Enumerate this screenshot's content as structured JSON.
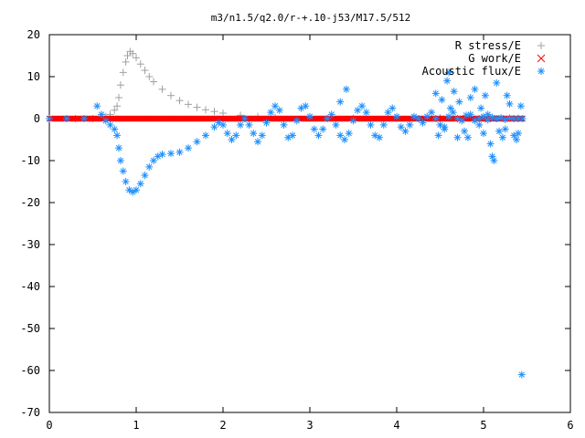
{
  "chart_data": {
    "type": "scatter",
    "title": "m3/n1.5/q2.0/r-+.10-j53/M17.5/512",
    "xlabel": "",
    "ylabel": "",
    "xlim": [
      0,
      6
    ],
    "ylim": [
      -70,
      20
    ],
    "xticks": [
      0,
      1,
      2,
      3,
      4,
      5,
      6
    ],
    "yticks": [
      20,
      10,
      0,
      -10,
      -20,
      -30,
      -40,
      -50,
      -60,
      -70
    ],
    "grid": false,
    "legend_position": "top-right",
    "series": [
      {
        "name": "R stress/E",
        "marker": "+",
        "color": "#a0a0a0",
        "points": [
          [
            0.0,
            0.0
          ],
          [
            0.3,
            0.0
          ],
          [
            0.5,
            0.0
          ],
          [
            0.6,
            0.2
          ],
          [
            0.65,
            0.5
          ],
          [
            0.7,
            1.0
          ],
          [
            0.75,
            2.0
          ],
          [
            0.78,
            3.0
          ],
          [
            0.8,
            5.0
          ],
          [
            0.82,
            8.0
          ],
          [
            0.85,
            11.0
          ],
          [
            0.88,
            13.5
          ],
          [
            0.9,
            15.0
          ],
          [
            0.93,
            16.0
          ],
          [
            0.96,
            15.5
          ],
          [
            1.0,
            14.5
          ],
          [
            1.05,
            13.0
          ],
          [
            1.1,
            11.5
          ],
          [
            1.15,
            10.0
          ],
          [
            1.2,
            8.8
          ],
          [
            1.3,
            7.0
          ],
          [
            1.4,
            5.5
          ],
          [
            1.5,
            4.3
          ],
          [
            1.6,
            3.4
          ],
          [
            1.7,
            2.7
          ],
          [
            1.8,
            2.1
          ],
          [
            1.9,
            1.7
          ],
          [
            2.0,
            1.3
          ],
          [
            2.2,
            0.8
          ],
          [
            2.4,
            0.5
          ],
          [
            2.6,
            0.3
          ],
          [
            3.0,
            0.2
          ],
          [
            3.5,
            0.1
          ],
          [
            4.0,
            0.1
          ],
          [
            4.5,
            0.2
          ],
          [
            5.0,
            0.2
          ],
          [
            5.4,
            0.2
          ]
        ]
      },
      {
        "name": "G work/E",
        "marker": "x",
        "color": "#ff0000",
        "points": [
          [
            0.0,
            0.0
          ],
          [
            0.5,
            0.0
          ],
          [
            1.0,
            0.0
          ],
          [
            1.5,
            0.0
          ],
          [
            2.0,
            0.0
          ],
          [
            2.5,
            0.0
          ],
          [
            3.0,
            0.0
          ],
          [
            3.5,
            0.0
          ],
          [
            4.0,
            0.0
          ],
          [
            4.5,
            0.0
          ],
          [
            5.0,
            0.0
          ],
          [
            5.45,
            0.0
          ]
        ]
      },
      {
        "name": "Acoustic flux/E",
        "marker": "*",
        "color": "#1e90ff",
        "points": [
          [
            0.0,
            0.0
          ],
          [
            0.2,
            0.0
          ],
          [
            0.4,
            0.0
          ],
          [
            0.55,
            3.0
          ],
          [
            0.6,
            1.0
          ],
          [
            0.65,
            -0.5
          ],
          [
            0.7,
            -1.5
          ],
          [
            0.75,
            -2.5
          ],
          [
            0.78,
            -4.0
          ],
          [
            0.8,
            -7.0
          ],
          [
            0.82,
            -10.0
          ],
          [
            0.85,
            -12.5
          ],
          [
            0.88,
            -15.0
          ],
          [
            0.92,
            -17.0
          ],
          [
            0.96,
            -17.5
          ],
          [
            1.0,
            -17.0
          ],
          [
            1.05,
            -15.5
          ],
          [
            1.1,
            -13.5
          ],
          [
            1.15,
            -11.5
          ],
          [
            1.2,
            -10.0
          ],
          [
            1.25,
            -9.0
          ],
          [
            1.3,
            -8.5
          ],
          [
            1.4,
            -8.3
          ],
          [
            1.5,
            -8.0
          ],
          [
            1.6,
            -7.0
          ],
          [
            1.7,
            -5.5
          ],
          [
            1.8,
            -4.0
          ],
          [
            1.9,
            -2.0
          ],
          [
            1.95,
            -1.0
          ],
          [
            2.0,
            -1.5
          ],
          [
            2.05,
            -3.5
          ],
          [
            2.1,
            -5.0
          ],
          [
            2.15,
            -4.0
          ],
          [
            2.2,
            -1.5
          ],
          [
            2.25,
            0.0
          ],
          [
            2.3,
            -1.5
          ],
          [
            2.35,
            -3.5
          ],
          [
            2.4,
            -5.5
          ],
          [
            2.45,
            -4.0
          ],
          [
            2.5,
            -1.0
          ],
          [
            2.55,
            1.5
          ],
          [
            2.6,
            3.0
          ],
          [
            2.65,
            2.0
          ],
          [
            2.7,
            -1.5
          ],
          [
            2.75,
            -4.5
          ],
          [
            2.8,
            -4.0
          ],
          [
            2.85,
            -0.5
          ],
          [
            2.9,
            2.5
          ],
          [
            2.95,
            3.0
          ],
          [
            3.0,
            0.5
          ],
          [
            3.05,
            -2.5
          ],
          [
            3.1,
            -4.0
          ],
          [
            3.15,
            -2.5
          ],
          [
            3.2,
            0.0
          ],
          [
            3.25,
            1.0
          ],
          [
            3.3,
            -1.5
          ],
          [
            3.35,
            -4.0
          ],
          [
            3.4,
            -5.0
          ],
          [
            3.45,
            -3.5
          ],
          [
            3.5,
            -0.5
          ],
          [
            3.55,
            2.0
          ],
          [
            3.6,
            3.0
          ],
          [
            3.65,
            1.5
          ],
          [
            3.7,
            -1.5
          ],
          [
            3.75,
            -4.0
          ],
          [
            3.8,
            -4.5
          ],
          [
            3.85,
            -1.5
          ],
          [
            3.9,
            1.5
          ],
          [
            3.95,
            2.5
          ],
          [
            4.0,
            0.5
          ],
          [
            4.05,
            -2.0
          ],
          [
            4.1,
            -3.0
          ],
          [
            4.15,
            -1.5
          ],
          [
            4.2,
            0.5
          ],
          [
            4.25,
            0.0
          ],
          [
            4.3,
            -1.0
          ],
          [
            4.35,
            0.5
          ],
          [
            4.4,
            1.5
          ],
          [
            4.45,
            0.0
          ],
          [
            4.5,
            -1.5
          ],
          [
            4.55,
            -2.0
          ],
          [
            4.6,
            0.5
          ],
          [
            4.65,
            1.5
          ],
          [
            4.7,
            0.0
          ],
          [
            4.75,
            -0.5
          ],
          [
            4.8,
            0.8
          ],
          [
            4.85,
            1.0
          ],
          [
            4.9,
            -0.5
          ],
          [
            4.95,
            0.0
          ],
          [
            5.0,
            0.5
          ],
          [
            5.05,
            -0.3
          ],
          [
            5.1,
            0.3
          ],
          [
            5.15,
            0.0
          ],
          [
            5.2,
            0.2
          ],
          [
            5.25,
            -0.2
          ],
          [
            5.3,
            0.1
          ],
          [
            5.35,
            0.0
          ],
          [
            5.4,
            0.0
          ],
          [
            5.45,
            0.0
          ],
          [
            3.42,
            7.0
          ],
          [
            3.35,
            4.0
          ],
          [
            4.45,
            6.0
          ],
          [
            4.52,
            4.5
          ],
          [
            4.6,
            11.0
          ],
          [
            4.58,
            9.0
          ],
          [
            4.62,
            2.5
          ],
          [
            4.66,
            6.5
          ],
          [
            4.72,
            4.0
          ],
          [
            4.78,
            -3.0
          ],
          [
            4.82,
            -4.5
          ],
          [
            4.85,
            5.0
          ],
          [
            4.9,
            7.0
          ],
          [
            4.95,
            -1.5
          ],
          [
            5.0,
            -3.5
          ],
          [
            5.02,
            5.5
          ],
          [
            5.05,
            1.0
          ],
          [
            5.08,
            -6.0
          ],
          [
            5.1,
            -9.0
          ],
          [
            5.12,
            -10.0
          ],
          [
            5.15,
            8.5
          ],
          [
            5.18,
            -3.0
          ],
          [
            5.22,
            -4.5
          ],
          [
            5.25,
            -2.5
          ],
          [
            5.3,
            3.5
          ],
          [
            5.35,
            -4.0
          ],
          [
            5.38,
            -5.0
          ],
          [
            5.4,
            -3.5
          ],
          [
            5.43,
            3.0
          ],
          [
            5.44,
            -61.0
          ],
          [
            4.48,
            -4.0
          ],
          [
            4.7,
            -4.5
          ],
          [
            4.97,
            2.5
          ],
          [
            5.27,
            5.5
          ],
          [
            4.55,
            -2.5
          ]
        ]
      }
    ]
  }
}
